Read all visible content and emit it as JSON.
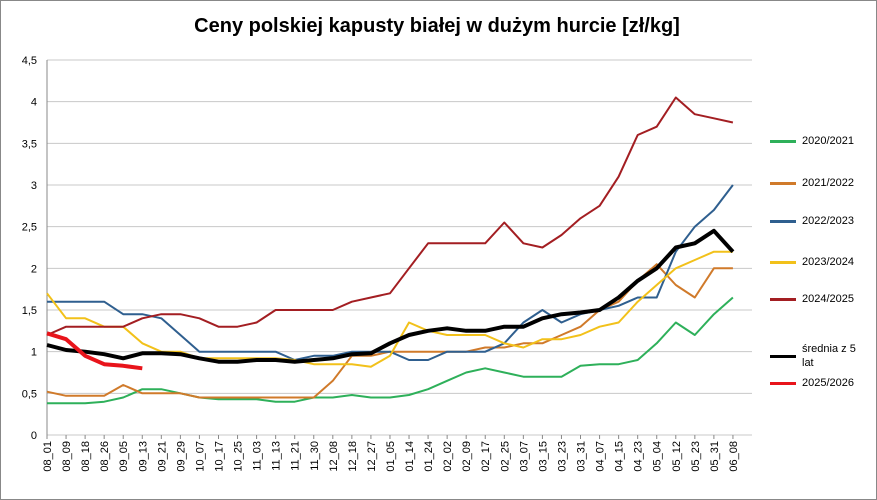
{
  "chart_data": {
    "type": "line",
    "title": "Ceny polskiej kapusty białej w dużym hurcie [zł/kg]",
    "categories": [
      "08_01",
      "08_09",
      "08_18",
      "08_26",
      "09_05",
      "09_13",
      "09_21",
      "09_29",
      "10_07",
      "10_17",
      "10_25",
      "11_03",
      "11_13",
      "11_21",
      "11_30",
      "12_08",
      "12_18",
      "12_27",
      "01_05",
      "01_14",
      "01_24",
      "02_02",
      "02_09",
      "02_17",
      "02_25",
      "03_07",
      "03_15",
      "03_23",
      "03_31",
      "04_07",
      "04_15",
      "04_23",
      "05_04",
      "05_12",
      "05_23",
      "05_31",
      "06_08"
    ],
    "series": [
      {
        "name": "2020/2021",
        "color": "#2eb05a",
        "width": 2,
        "values": [
          0.38,
          0.38,
          0.38,
          0.4,
          0.45,
          0.55,
          0.55,
          0.5,
          0.45,
          0.43,
          0.43,
          0.43,
          0.4,
          0.4,
          0.45,
          0.45,
          0.48,
          0.45,
          0.45,
          0.48,
          0.55,
          0.65,
          0.75,
          0.8,
          0.75,
          0.7,
          0.7,
          0.7,
          0.83,
          0.85,
          0.85,
          0.9,
          1.1,
          1.35,
          1.2,
          1.45,
          1.65
        ]
      },
      {
        "name": "2021/2022",
        "color": "#d07a2a",
        "width": 2,
        "values": [
          0.52,
          0.47,
          0.47,
          0.47,
          0.6,
          0.5,
          0.5,
          0.5,
          0.45,
          0.45,
          0.45,
          0.45,
          0.45,
          0.45,
          0.45,
          0.65,
          0.95,
          0.95,
          1.0,
          1.0,
          1.0,
          1.0,
          1.0,
          1.05,
          1.05,
          1.1,
          1.1,
          1.2,
          1.3,
          1.5,
          1.6,
          1.85,
          2.05,
          1.8,
          1.65,
          2.0,
          2.0
        ]
      },
      {
        "name": "2022/2023",
        "color": "#2f5f8f",
        "width": 2,
        "values": [
          1.6,
          1.6,
          1.6,
          1.6,
          1.45,
          1.45,
          1.4,
          1.2,
          1.0,
          1.0,
          1.0,
          1.0,
          1.0,
          0.9,
          0.95,
          0.95,
          1.0,
          1.0,
          1.0,
          0.9,
          0.9,
          1.0,
          1.0,
          1.0,
          1.1,
          1.35,
          1.5,
          1.35,
          1.45,
          1.5,
          1.55,
          1.65,
          1.65,
          2.2,
          2.5,
          2.7,
          3.0
        ]
      },
      {
        "name": "2023/2024",
        "color": "#f2c11a",
        "width": 2,
        "values": [
          1.7,
          1.4,
          1.4,
          1.3,
          1.3,
          1.1,
          1.0,
          1.0,
          0.92,
          0.92,
          0.92,
          0.92,
          0.92,
          0.9,
          0.85,
          0.85,
          0.85,
          0.82,
          0.95,
          1.35,
          1.25,
          1.2,
          1.2,
          1.2,
          1.1,
          1.05,
          1.15,
          1.15,
          1.2,
          1.3,
          1.35,
          1.6,
          1.8,
          2.0,
          2.1,
          2.2,
          2.2
        ]
      },
      {
        "name": "2024/2025",
        "color": "#a31e22",
        "width": 2,
        "values": [
          1.2,
          1.3,
          1.3,
          1.3,
          1.3,
          1.4,
          1.45,
          1.45,
          1.4,
          1.3,
          1.3,
          1.35,
          1.5,
          1.5,
          1.5,
          1.5,
          1.6,
          1.65,
          1.7,
          2.0,
          2.3,
          2.3,
          2.3,
          2.3,
          2.55,
          2.3,
          2.25,
          2.4,
          2.6,
          2.75,
          3.1,
          3.6,
          3.7,
          4.05,
          3.85,
          3.8,
          3.75
        ]
      },
      {
        "name": "średnia z 5 lat",
        "color": "#000000",
        "width": 4,
        "values": [
          1.08,
          1.02,
          1.0,
          0.97,
          0.92,
          0.98,
          0.98,
          0.97,
          0.92,
          0.88,
          0.88,
          0.9,
          0.9,
          0.88,
          0.9,
          0.92,
          0.97,
          0.98,
          1.1,
          1.2,
          1.25,
          1.28,
          1.25,
          1.25,
          1.3,
          1.3,
          1.4,
          1.45,
          1.47,
          1.5,
          1.65,
          1.85,
          2.0,
          2.25,
          2.3,
          2.45,
          2.2
        ]
      },
      {
        "name": "2025/2026",
        "color": "#e8141b",
        "width": 4,
        "values": [
          1.22,
          1.15,
          0.95,
          0.85,
          0.83,
          0.8,
          null,
          null,
          null,
          null,
          null,
          null,
          null,
          null,
          null,
          null,
          null,
          null,
          null,
          null,
          null,
          null,
          null,
          null,
          null,
          null,
          null,
          null,
          null,
          null,
          null,
          null,
          null,
          null,
          null,
          null,
          null
        ]
      }
    ],
    "ylim": [
      0,
      4.5
    ],
    "yticks": [
      0,
      {
        "value": 0.5,
        "label": "0,5"
      },
      1,
      {
        "value": 1.5,
        "label": "1,5"
      },
      2,
      {
        "value": 2.5,
        "label": "2,5"
      },
      3,
      {
        "value": 3.5,
        "label": "3,5"
      },
      4,
      {
        "value": 4.5,
        "label": "4,5"
      }
    ],
    "grid": true
  }
}
